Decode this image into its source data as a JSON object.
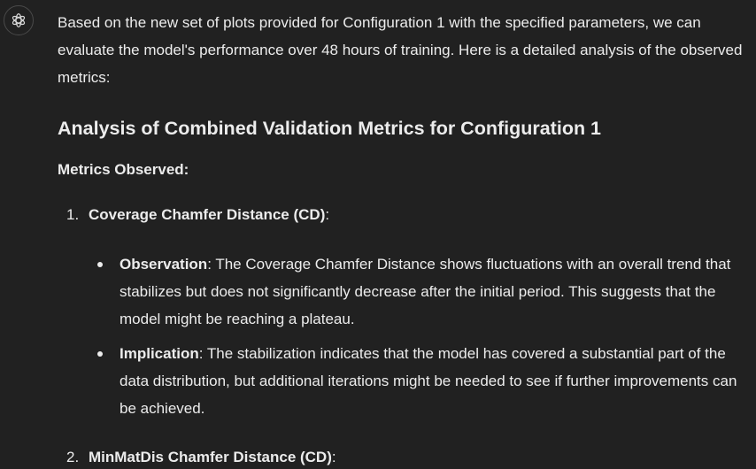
{
  "assistant_icon": "openai-logo-icon",
  "intro": "Based on the new set of plots provided for Configuration 1 with the specified parameters, we can evaluate the model's performance over 48 hours of training. Here is a detailed analysis of the observed metrics:",
  "heading": "Analysis of Combined Validation Metrics for Configuration 1",
  "metrics_label": "Metrics Observed:",
  "items": [
    {
      "number": "1.",
      "title": "Coverage Chamfer Distance (CD)",
      "suffix": ":",
      "bullets": [
        {
          "term": "Observation",
          "text": ": The Coverage Chamfer Distance shows fluctuations with an overall trend that stabilizes but does not significantly decrease after the initial period. This suggests that the model might be reaching a plateau."
        },
        {
          "term": "Implication",
          "text": ": The stabilization indicates that the model has covered a substantial part of the data distribution, but additional iterations might be needed to see if further improvements can be achieved."
        }
      ]
    },
    {
      "number": "2.",
      "title": "MinMatDis Chamfer Distance (CD)",
      "suffix": ":"
    }
  ]
}
